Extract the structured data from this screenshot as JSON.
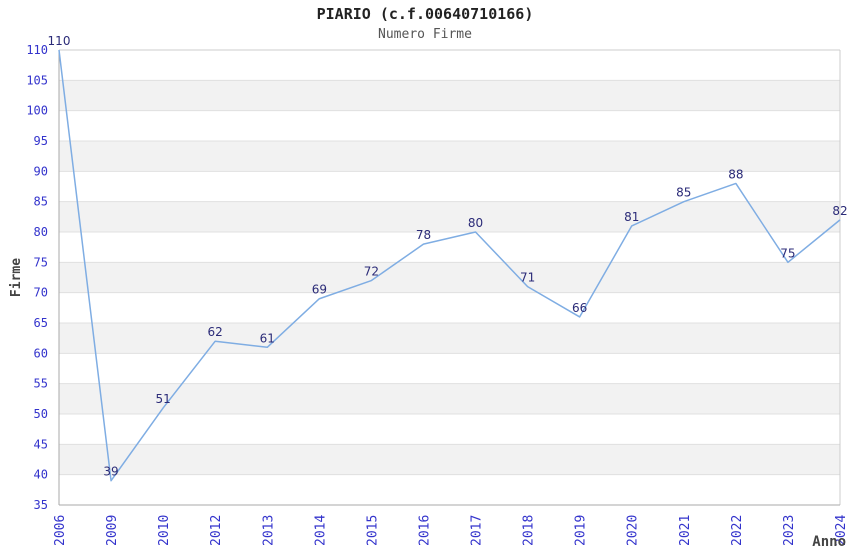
{
  "page": {
    "background": "#ffffff"
  },
  "chart_data": {
    "type": "line",
    "title": "PIARIO (c.f.00640710166)",
    "subtitle": "Numero Firme",
    "xlabel": "Anno",
    "ylabel": "Firme",
    "categories": [
      "2006",
      "2009",
      "2010",
      "2012",
      "2013",
      "2014",
      "2015",
      "2016",
      "2017",
      "2018",
      "2019",
      "2020",
      "2021",
      "2022",
      "2023",
      "2024"
    ],
    "values": [
      110,
      39,
      51,
      62,
      61,
      69,
      72,
      78,
      80,
      71,
      66,
      81,
      85,
      88,
      75,
      82
    ],
    "ylim": [
      35,
      110
    ],
    "ytick_step": 5,
    "grid": "horizontal",
    "band_fill": "alternating",
    "legend": "none",
    "markers": "none",
    "colors": {
      "line": "#7fade3",
      "tick_label": "#3333cc",
      "data_label": "#2b2b78",
      "band": "#f2f2f2",
      "gridline": "#e0e0e0",
      "border_top_right": "#cccccc",
      "axis_line": "#aaaaaa",
      "title": "#222222",
      "subtitle": "#555555",
      "axis_title": "#444444",
      "plot_background": "#ffffff"
    }
  }
}
